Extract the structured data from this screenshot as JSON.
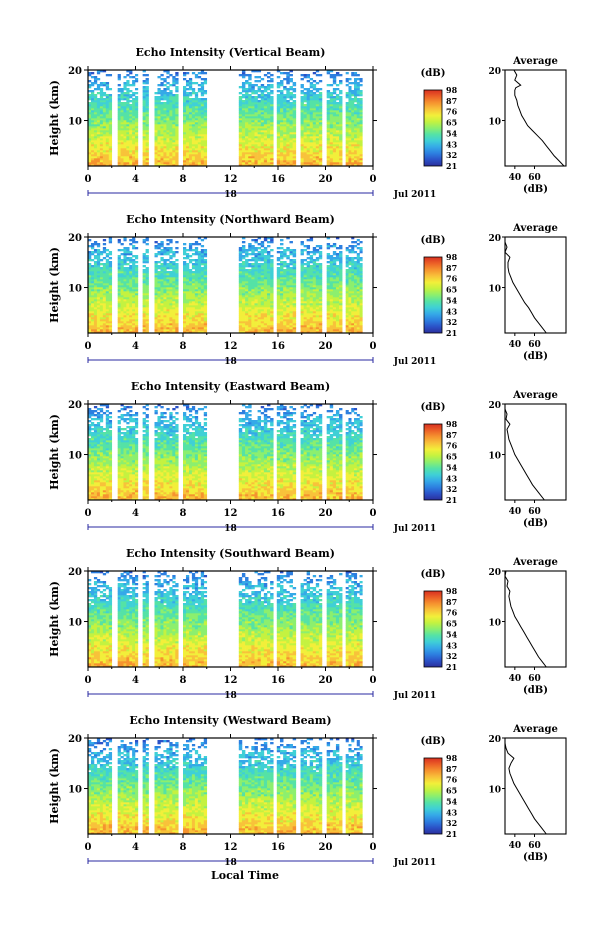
{
  "x_axis_label": "Local Time",
  "colorbar": {
    "unit": "(dB)",
    "ticks": [
      "21",
      "32",
      "43",
      "54",
      "65",
      "76",
      "87",
      "98"
    ],
    "colors": [
      "#2b2f9c",
      "#2b52c8",
      "#2d7fe0",
      "#35a9e8",
      "#3fd0d6",
      "#55e2a6",
      "#8cef6e",
      "#c4f240",
      "#f2ef3a",
      "#f8c23a",
      "#f5932f",
      "#ec6027",
      "#d93020"
    ]
  },
  "profile": {
    "title": "Average",
    "xlabel": "(dB)",
    "xticks": [
      "40",
      "60"
    ]
  },
  "panels": [
    {
      "title": "Echo Intensity (Vertical Beam)",
      "ylabel": "Height (km)",
      "yticks": [
        "20",
        "10"
      ],
      "xticks": [
        "0",
        "4",
        "8",
        "12",
        "16",
        "20",
        "0"
      ],
      "date_mid": "18",
      "date_right": "Jul 2011"
    },
    {
      "title": "Echo Intensity (Northward Beam)",
      "ylabel": "Height (km)",
      "yticks": [
        "20",
        "10"
      ],
      "xticks": [
        "0",
        "4",
        "8",
        "12",
        "16",
        "20",
        "0"
      ],
      "date_mid": "18",
      "date_right": "Jul 2011"
    },
    {
      "title": "Echo Intensity (Eastward Beam)",
      "ylabel": "Height (km)",
      "yticks": [
        "20",
        "10"
      ],
      "xticks": [
        "0",
        "4",
        "8",
        "12",
        "16",
        "20",
        "0"
      ],
      "date_mid": "18",
      "date_right": "Jul 2011"
    },
    {
      "title": "Echo Intensity (Southward Beam)",
      "ylabel": "Height (km)",
      "yticks": [
        "20",
        "10"
      ],
      "xticks": [
        "0",
        "4",
        "8",
        "12",
        "16",
        "20",
        "0"
      ],
      "date_mid": "18",
      "date_right": "Jul 2011"
    },
    {
      "title": "Echo Intensity (Westward Beam)",
      "ylabel": "Height (km)",
      "yticks": [
        "20",
        "10"
      ],
      "xticks": [
        "0",
        "4",
        "8",
        "12",
        "16",
        "20",
        "0"
      ],
      "date_mid": "18",
      "date_right": "Jul 2011"
    }
  ],
  "chart_data": [
    {
      "type": "heatmap",
      "beam": "Vertical",
      "x_unit": "hour",
      "y_unit": "km",
      "xlim": [
        0,
        24
      ],
      "ylim": [
        1,
        20
      ],
      "data_range": [
        21,
        98
      ],
      "data_segments": [
        [
          0,
          2
        ],
        [
          2.5,
          4.2
        ],
        [
          4.6,
          5.1
        ],
        [
          5.6,
          7.6
        ],
        [
          8.0,
          10.0
        ],
        [
          12.7,
          15.6
        ],
        [
          15.9,
          17.5
        ],
        [
          17.9,
          19.7
        ],
        [
          20.1,
          21.4
        ],
        [
          21.7,
          23.1
        ]
      ],
      "profile_x": [
        90,
        85,
        80,
        76,
        72,
        68,
        63,
        58,
        53,
        50,
        47,
        45,
        43,
        42,
        40,
        40,
        41,
        46,
        40,
        42,
        39
      ],
      "profile_y": [
        1,
        2,
        3,
        4,
        5,
        6,
        7,
        8,
        9,
        10,
        11,
        12,
        13,
        14,
        15,
        16,
        16.5,
        17,
        18,
        19,
        20
      ]
    },
    {
      "type": "heatmap",
      "beam": "Northward",
      "x_unit": "hour",
      "y_unit": "km",
      "xlim": [
        0,
        24
      ],
      "ylim": [
        1,
        20
      ],
      "data_range": [
        21,
        98
      ],
      "data_segments": [
        [
          0,
          2
        ],
        [
          2.5,
          4.2
        ],
        [
          4.6,
          5.1
        ],
        [
          5.6,
          7.6
        ],
        [
          8.0,
          10.0
        ],
        [
          12.7,
          15.6
        ],
        [
          15.9,
          17.5
        ],
        [
          17.9,
          19.7
        ],
        [
          20.1,
          21.4
        ],
        [
          21.7,
          23.1
        ]
      ],
      "profile_x": [
        72,
        68,
        64,
        60,
        57,
        54,
        50,
        47,
        44,
        41,
        38,
        36,
        34,
        33,
        33,
        35,
        30,
        32,
        29,
        30
      ],
      "profile_y": [
        1,
        2,
        3,
        4,
        5,
        6,
        7,
        8,
        9,
        10,
        11,
        12,
        13,
        14,
        15,
        16,
        17,
        18,
        19,
        20
      ]
    },
    {
      "type": "heatmap",
      "beam": "Eastward",
      "x_unit": "hour",
      "y_unit": "km",
      "xlim": [
        0,
        24
      ],
      "ylim": [
        1,
        20
      ],
      "data_range": [
        21,
        98
      ],
      "data_segments": [
        [
          0,
          2
        ],
        [
          2.5,
          4.2
        ],
        [
          4.6,
          5.1
        ],
        [
          5.6,
          7.6
        ],
        [
          8.0,
          10.0
        ],
        [
          12.7,
          15.6
        ],
        [
          15.9,
          17.5
        ],
        [
          17.9,
          19.7
        ],
        [
          20.1,
          21.4
        ],
        [
          21.7,
          23.1
        ]
      ],
      "profile_x": [
        70,
        66,
        62,
        58,
        55,
        52,
        49,
        46,
        43,
        40,
        38,
        36,
        34,
        33,
        32,
        35,
        31,
        32,
        29,
        30
      ],
      "profile_y": [
        1,
        2,
        3,
        4,
        5,
        6,
        7,
        8,
        9,
        10,
        11,
        12,
        13,
        14,
        15,
        16,
        17,
        18,
        19,
        20
      ]
    },
    {
      "type": "heatmap",
      "beam": "Southward",
      "x_unit": "hour",
      "y_unit": "km",
      "xlim": [
        0,
        24
      ],
      "ylim": [
        1,
        20
      ],
      "data_range": [
        21,
        98
      ],
      "data_segments": [
        [
          0,
          2
        ],
        [
          2.5,
          4.2
        ],
        [
          4.6,
          5.1
        ],
        [
          5.6,
          7.6
        ],
        [
          8.0,
          10.0
        ],
        [
          12.7,
          15.6
        ],
        [
          15.9,
          17.5
        ],
        [
          17.9,
          19.7
        ],
        [
          20.1,
          21.4
        ],
        [
          21.7,
          23.1
        ]
      ],
      "profile_x": [
        72,
        68,
        64,
        61,
        58,
        55,
        52,
        49,
        46,
        43,
        40,
        38,
        36,
        35,
        34,
        35,
        32,
        33,
        30,
        31
      ],
      "profile_y": [
        1,
        2,
        3,
        4,
        5,
        6,
        7,
        8,
        9,
        10,
        11,
        12,
        13,
        14,
        15,
        16,
        17,
        18,
        19,
        20
      ]
    },
    {
      "type": "heatmap",
      "beam": "Westward",
      "x_unit": "hour",
      "y_unit": "km",
      "xlim": [
        0,
        24
      ],
      "ylim": [
        1,
        20
      ],
      "data_range": [
        21,
        98
      ],
      "data_segments": [
        [
          0,
          2
        ],
        [
          2.5,
          4.2
        ],
        [
          4.6,
          5.1
        ],
        [
          5.6,
          7.6
        ],
        [
          8.0,
          10.0
        ],
        [
          12.7,
          15.6
        ],
        [
          15.9,
          17.5
        ],
        [
          17.9,
          19.7
        ],
        [
          20.1,
          21.4
        ],
        [
          21.7,
          23.1
        ]
      ],
      "profile_x": [
        72,
        68,
        64,
        60,
        57,
        54,
        51,
        48,
        45,
        42,
        39,
        37,
        35,
        34,
        36,
        39,
        33,
        31,
        29,
        30
      ],
      "profile_y": [
        1,
        2,
        3,
        4,
        5,
        6,
        7,
        8,
        9,
        10,
        11,
        12,
        13,
        14,
        15,
        16,
        17,
        18,
        19,
        20
      ]
    }
  ]
}
